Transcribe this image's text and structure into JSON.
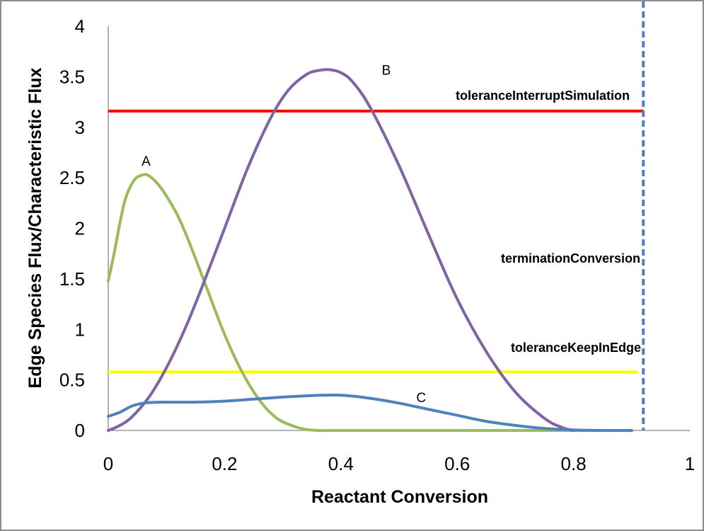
{
  "chart_data": {
    "type": "line",
    "xlabel": "Reactant Conversion",
    "ylabel": "Edge Species Flux/Characteristic Flux",
    "xlim": [
      0,
      1
    ],
    "ylim": [
      0,
      4
    ],
    "x_ticks": [
      "0",
      "0.2",
      "0.4",
      "0.6",
      "0.8",
      "1"
    ],
    "y_ticks": [
      "0",
      "0.5",
      "1",
      "1.5",
      "2",
      "2.5",
      "3",
      "3.5",
      "4"
    ],
    "grid": false,
    "legend": "none",
    "series": [
      {
        "name": "A",
        "color": "#9BBB59",
        "x": [
          0,
          0.01,
          0.02,
          0.03,
          0.045,
          0.06,
          0.07,
          0.085,
          0.1,
          0.12,
          0.14,
          0.17,
          0.2,
          0.23,
          0.26,
          0.29,
          0.32,
          0.34,
          0.36,
          0.38,
          0.45,
          0.6,
          0.8,
          0.9
        ],
        "y": [
          1.48,
          1.75,
          2.05,
          2.3,
          2.48,
          2.53,
          2.52,
          2.44,
          2.32,
          2.12,
          1.85,
          1.4,
          0.95,
          0.58,
          0.3,
          0.12,
          0.04,
          0.01,
          0.0,
          0.0,
          0.0,
          0.0,
          0.0,
          0.0
        ]
      },
      {
        "name": "B",
        "color": "#8064A2",
        "x": [
          0,
          0.02,
          0.04,
          0.07,
          0.1,
          0.13,
          0.16,
          0.2,
          0.24,
          0.28,
          0.31,
          0.34,
          0.36,
          0.38,
          0.4,
          0.42,
          0.45,
          0.5,
          0.55,
          0.6,
          0.65,
          0.7,
          0.75,
          0.78,
          0.8
        ],
        "y": [
          0.0,
          0.05,
          0.13,
          0.33,
          0.62,
          0.98,
          1.4,
          2.0,
          2.6,
          3.1,
          3.37,
          3.52,
          3.56,
          3.57,
          3.54,
          3.45,
          3.2,
          2.62,
          1.95,
          1.3,
          0.78,
          0.38,
          0.12,
          0.03,
          0.0
        ]
      },
      {
        "name": "C",
        "color": "#4F81BD",
        "x": [
          0,
          0.02,
          0.04,
          0.06,
          0.09,
          0.15,
          0.2,
          0.25,
          0.3,
          0.35,
          0.39,
          0.42,
          0.46,
          0.5,
          0.55,
          0.6,
          0.65,
          0.7,
          0.75,
          0.8,
          0.85,
          0.9
        ],
        "y": [
          0.14,
          0.18,
          0.24,
          0.27,
          0.28,
          0.28,
          0.29,
          0.31,
          0.33,
          0.345,
          0.35,
          0.34,
          0.31,
          0.27,
          0.21,
          0.15,
          0.09,
          0.05,
          0.02,
          0.005,
          0.0,
          0.0
        ]
      }
    ],
    "series_labels": [
      {
        "text": "A",
        "x": 0.065,
        "y": 2.62
      },
      {
        "text": "B",
        "x": 0.478,
        "y": 3.52
      },
      {
        "text": "C",
        "x": 0.538,
        "y": 0.28
      }
    ],
    "reference_lines": [
      {
        "label": "toleranceInterruptSimulation",
        "orientation": "horizontal",
        "value": 3.16,
        "color": "#FF0000",
        "style": "solid"
      },
      {
        "label": "toleranceKeepInEdge",
        "orientation": "horizontal",
        "value": 0.58,
        "color": "#FFFF00",
        "style": "solid"
      },
      {
        "label": "terminationConversion",
        "orientation": "vertical",
        "value": 0.92,
        "color": "#4F81BD",
        "style": "dashed"
      }
    ]
  }
}
